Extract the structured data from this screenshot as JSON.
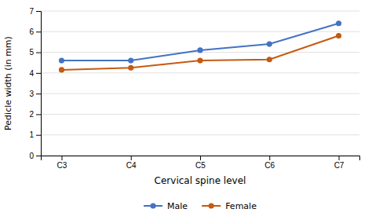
{
  "chart_data": {
    "type": "line",
    "categories": [
      "C3",
      "C4",
      "C5",
      "C6",
      "C7"
    ],
    "series": [
      {
        "name": "Male",
        "color": "#4472C4",
        "marker": "circle",
        "values": [
          4.6,
          4.6,
          5.1,
          5.4,
          6.4
        ]
      },
      {
        "name": "Female",
        "color": "#C55A11",
        "marker": "circle",
        "values": [
          4.15,
          4.25,
          4.6,
          4.65,
          5.8
        ]
      }
    ],
    "xlabel": "Cervical spine level",
    "ylabel": "Pedicle width (in mm)",
    "ylim": [
      0,
      7
    ],
    "yticks": [
      0,
      1,
      2,
      3,
      4,
      5,
      6,
      7
    ],
    "grid": true,
    "legend": "bottom"
  }
}
